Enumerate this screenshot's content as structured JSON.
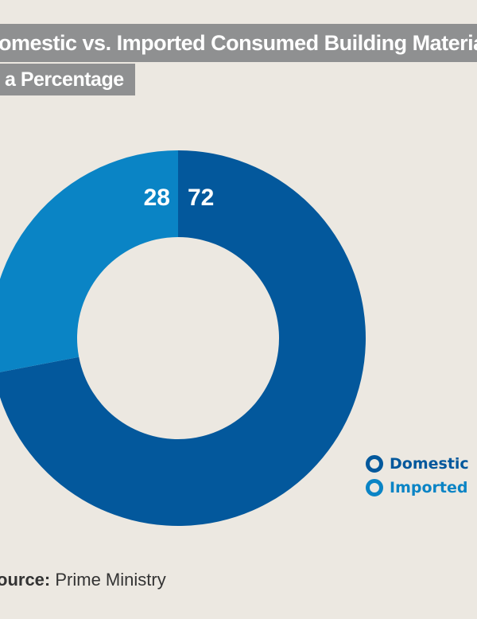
{
  "title": {
    "line1": "omestic vs. Imported Consumed Building Materia",
    "line2": "a Percentage"
  },
  "chart_data": {
    "type": "pie",
    "donut": true,
    "series": [
      {
        "name": "Domestic",
        "value": 72,
        "color": "#03589c"
      },
      {
        "name": "Imported",
        "value": 28,
        "color": "#0a84c5"
      }
    ],
    "legend_position": "bottom-right"
  },
  "legend": {
    "domestic": "Domestic",
    "imported": "Imported"
  },
  "source": {
    "label": "ource:",
    "value": "Prime Ministry"
  }
}
